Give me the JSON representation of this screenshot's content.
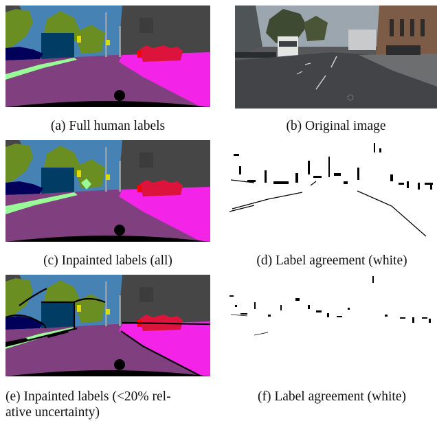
{
  "figure": {
    "panels": [
      {
        "id": "a",
        "caption": "(a) Full human labels",
        "kind": "segmentation"
      },
      {
        "id": "b",
        "caption": "(b) Original image",
        "kind": "photo"
      },
      {
        "id": "c",
        "caption": "(c) Inpainted labels (all)",
        "kind": "segmentation"
      },
      {
        "id": "d",
        "caption": "(d) Label agreement (white)",
        "kind": "agreement-mask"
      },
      {
        "id": "e",
        "caption_line1": "(e) Inpainted labels (<20% rel-",
        "caption_line2": "ative uncertainty)",
        "kind": "segmentation"
      },
      {
        "id": "f",
        "caption": "(f) Label agreement (white)",
        "kind": "agreement-mask"
      }
    ]
  },
  "colors": {
    "sky": "#4682b4",
    "vegetation": "#6b8e23",
    "building": "#464646",
    "road": "#804080",
    "sidewalk": "#f423e8",
    "vehicle": "#00005a",
    "bus": "#003c64",
    "person": "#dc143c",
    "rider": "#ff0000",
    "traffic_sign": "#dcdc00",
    "terrain": "#98fb98",
    "pole": "#999999",
    "ego": "#000000"
  }
}
